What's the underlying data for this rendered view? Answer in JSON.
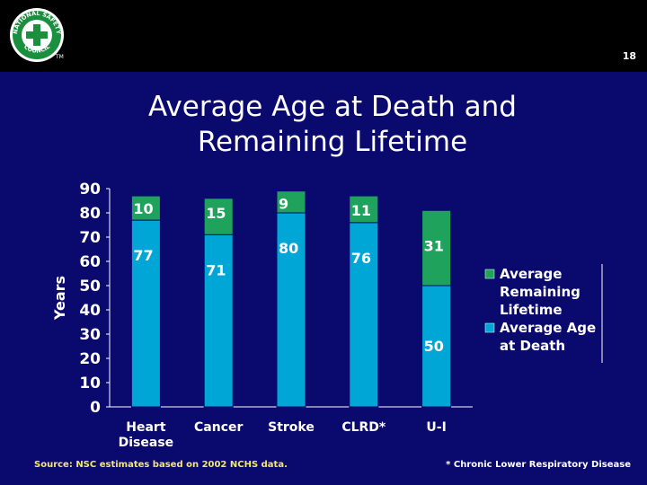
{
  "slide": {
    "title": "Average Age at Death and Remaining Lifetime",
    "page_number": "18",
    "source": "Source: NSC estimates based on 2002 NCHS data.",
    "footnote": "* Chronic Lower Respiratory Disease",
    "logo_text": "NATIONAL SAFETY COUNCIL",
    "logo_tm": "TM"
  },
  "colors": {
    "background": "#0a0a6e",
    "header": "#000000",
    "age_series": "#00a6d6",
    "remaining_series": "#1fa35c",
    "source_text": "#f2e86a"
  },
  "chart_data": {
    "type": "bar",
    "stacked": true,
    "title": "Average Age at Death and Remaining Lifetime",
    "xlabel": "",
    "ylabel": "Years",
    "ylim": [
      0,
      90
    ],
    "yticks": [
      0,
      10,
      20,
      30,
      40,
      50,
      60,
      70,
      80,
      90
    ],
    "categories": [
      "Heart Disease",
      "Cancer",
      "Stroke",
      "CLRD*",
      "U-I"
    ],
    "category_lines": [
      [
        "Heart",
        "Disease"
      ],
      [
        "Cancer"
      ],
      [
        "Stroke"
      ],
      [
        "CLRD*"
      ],
      [
        "U-I"
      ]
    ],
    "series": [
      {
        "name": "Average Age at Death",
        "values": [
          77,
          71,
          80,
          76,
          50
        ]
      },
      {
        "name": "Average Remaining Lifetime",
        "values": [
          10,
          15,
          9,
          11,
          31
        ]
      }
    ],
    "legend": [
      {
        "name": "Average Remaining Lifetime",
        "lines": [
          "Average",
          "Remaining",
          "Lifetime"
        ],
        "series_index": 1
      },
      {
        "name": "Average Age at Death",
        "lines": [
          "Average Age",
          "at Death"
        ],
        "series_index": 0
      }
    ],
    "legend_position": "right",
    "grid": false
  }
}
